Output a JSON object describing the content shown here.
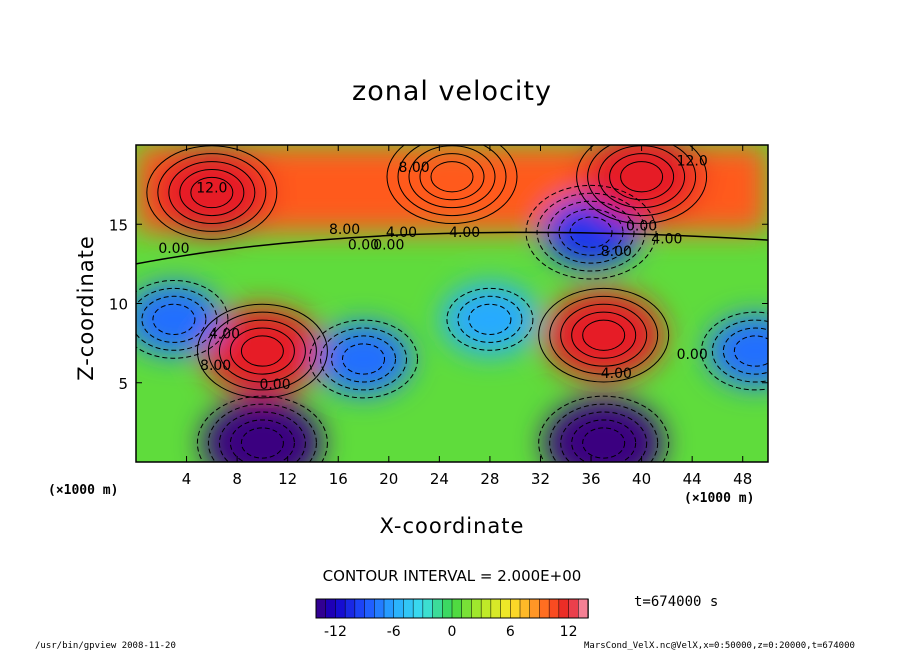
{
  "chart_data": {
    "type": "heatmap",
    "title": "zonal velocity",
    "xlabel": "X-coordinate",
    "ylabel": "Z-coordinate",
    "x_unit": "(×1000 m)",
    "y_unit": "(×1000 m)",
    "xlim": [
      0,
      50
    ],
    "ylim": [
      0,
      20
    ],
    "x_ticks": [
      4,
      8,
      12,
      16,
      20,
      24,
      28,
      32,
      36,
      40,
      44,
      48
    ],
    "y_ticks": [
      5,
      10,
      15
    ],
    "contour_interval_text": "CONTOUR INTERVAL = 2.000E+00",
    "contour_labels": [
      "12.0",
      "8.00",
      "12.0",
      "8.00",
      "4.00",
      "0.00",
      "4.00",
      "0.00",
      "8.00",
      "0.00",
      "4.00",
      "0.00",
      "4.00",
      "8.00",
      "0.00",
      "4.00",
      "0.00"
    ],
    "colorbar": {
      "min": -14,
      "max": 14,
      "tick_labels": [
        "-12",
        "-6",
        "0",
        "6",
        "12"
      ],
      "tick_values": [
        -12,
        -6,
        0,
        6,
        12
      ]
    },
    "features": [
      {
        "x": 10,
        "z": 7,
        "value": 12
      },
      {
        "x": 37,
        "z": 8,
        "value": 12
      },
      {
        "x": 28,
        "z": 9,
        "value": -6
      },
      {
        "x": 18,
        "z": 6.5,
        "value": -8
      },
      {
        "x": 10,
        "z": 1.2,
        "value": -14
      },
      {
        "x": 37,
        "z": 1.2,
        "value": -14
      },
      {
        "x": 36,
        "z": 14.5,
        "value": -10
      },
      {
        "x": 3,
        "z": 9,
        "value": -8
      },
      {
        "x": 49,
        "z": 7,
        "value": -8
      },
      {
        "x": 25,
        "z": 18,
        "value": 10
      },
      {
        "x": 40,
        "z": 18,
        "value": 12
      },
      {
        "x": 6,
        "z": 17,
        "value": 12
      }
    ],
    "grid": false,
    "colors": {
      "min": "#3a0080",
      "neutral": "#39d34a",
      "max": "#f8a0b8"
    }
  },
  "time_label": "t=674000 s",
  "footer": {
    "left": "/usr/bin/gpview  2008-11-20",
    "right": "MarsCond_VelX.nc@VelX,x=0:50000,z=0:20000,t=674000"
  }
}
